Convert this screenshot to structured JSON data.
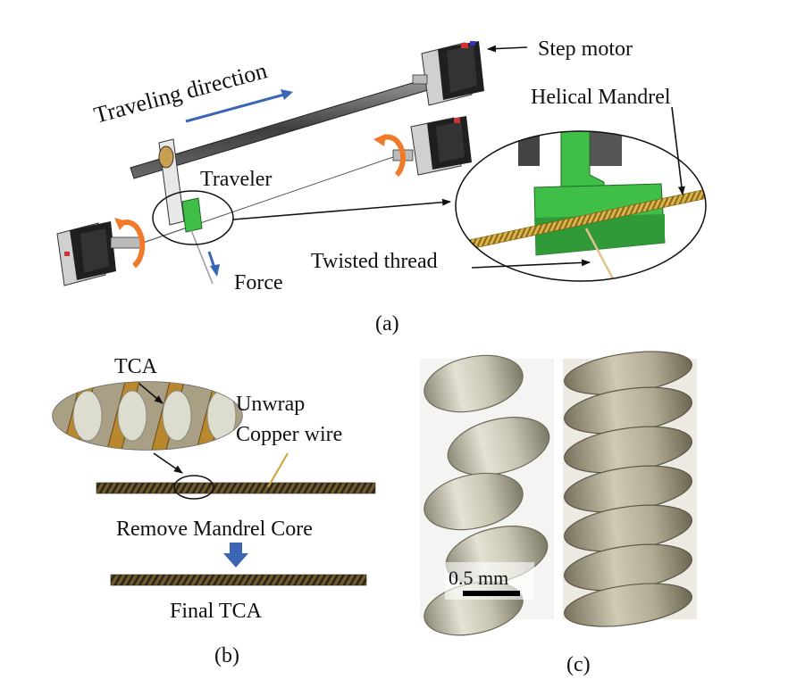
{
  "panel_a": {
    "labels": {
      "traveling_direction": "Traveling direction",
      "step_motor": "Step motor",
      "helical_mandrel": "Helical Mandrel",
      "traveler": "Traveler",
      "twisted_thread": "Twisted thread",
      "force": "Force"
    },
    "caption": "(a)"
  },
  "panel_b": {
    "labels": {
      "tca": "TCA",
      "unwrap_line1": "Unwrap",
      "unwrap_line2": "Copper wire",
      "remove_core": "Remove Mandrel Core",
      "final_tca": "Final TCA"
    },
    "caption": "(b)"
  },
  "panel_c": {
    "scale_bar": "0.5 mm",
    "caption": "(c)"
  },
  "colors": {
    "arrow_blue": "#3a66b5",
    "rotation_orange": "#f07a2a",
    "traveler_green": "#3fbe48",
    "mandrel_gold": "#c9a23a",
    "motor_dark": "#222222"
  }
}
